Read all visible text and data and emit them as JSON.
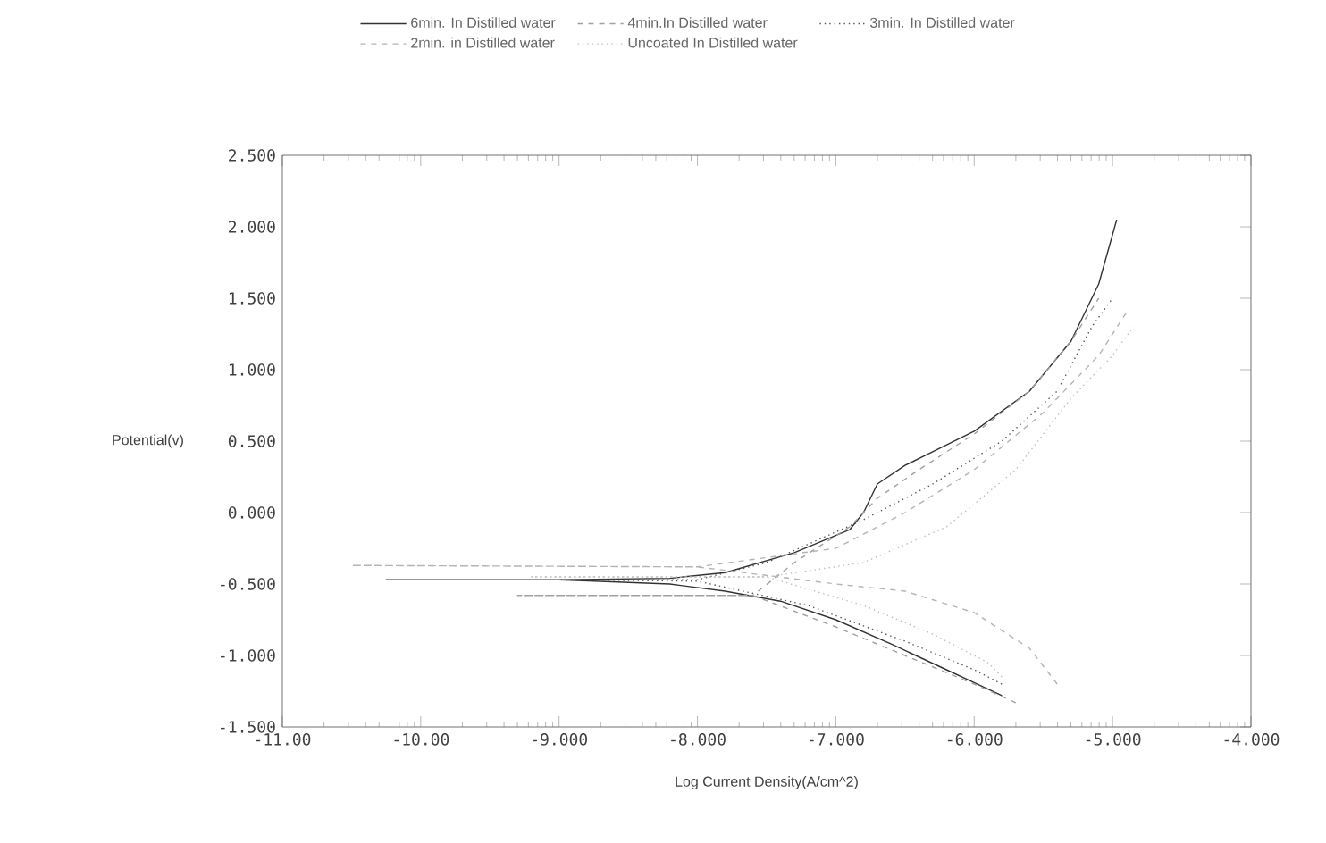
{
  "chart_data": {
    "type": "line",
    "xlabel": "Log Current Density(A/cm^2)",
    "ylabel": "Potential(v)",
    "xlim": [
      -11,
      -4
    ],
    "ylim": [
      -1.5,
      2.5
    ],
    "xticks": [
      {
        "value": -11,
        "label": "-11.00"
      },
      {
        "value": -10,
        "label": "-10.00"
      },
      {
        "value": -9,
        "label": "-9.000"
      },
      {
        "value": -8,
        "label": "-8.000"
      },
      {
        "value": -7,
        "label": "-7.000"
      },
      {
        "value": -6,
        "label": "-6.000"
      },
      {
        "value": -5,
        "label": "-5.000"
      },
      {
        "value": -4,
        "label": "-4.000"
      }
    ],
    "yticks": [
      {
        "value": -1.5,
        "label": "-1.500"
      },
      {
        "value": -1,
        "label": "-1.000"
      },
      {
        "value": -0.5,
        "label": "-0.500"
      },
      {
        "value": 0,
        "label": "0.000"
      },
      {
        "value": 0.5,
        "label": "0.500"
      },
      {
        "value": 1,
        "label": "1.000"
      },
      {
        "value": 1.5,
        "label": "1.500"
      },
      {
        "value": 2,
        "label": "2.000"
      },
      {
        "value": 2.5,
        "label": "2.500"
      }
    ],
    "grid": false,
    "legend": "top",
    "marker": "none",
    "series": [
      {
        "name": "6min. In Distilled water",
        "color": "#333333",
        "line_style": "solid",
        "x": [
          -5.8,
          -6.2,
          -6.6,
          -7.0,
          -7.4,
          -7.8,
          -8.2,
          -9.0,
          -10.25,
          -9.0,
          -8.2,
          -7.8,
          -7.3,
          -6.9,
          -6.8,
          -6.7,
          -6.5,
          -6.0,
          -5.6,
          -5.3,
          -5.1,
          -4.97
        ],
        "values": [
          -1.28,
          -1.1,
          -0.92,
          -0.75,
          -0.62,
          -0.55,
          -0.5,
          -0.47,
          -0.47,
          -0.47,
          -0.46,
          -0.42,
          -0.28,
          -0.12,
          0.0,
          0.2,
          0.33,
          0.57,
          0.85,
          1.2,
          1.6,
          2.05
        ]
      },
      {
        "name": "4min.In Distilled water",
        "color": "#a0a0a0",
        "line_style": "dashed",
        "x": [
          -5.7,
          -6.0,
          -6.5,
          -7.0,
          -7.6,
          -9.3,
          -7.6,
          -7.3,
          -6.9,
          -6.7,
          -6.4,
          -6.0,
          -5.6,
          -5.3,
          -5.1
        ],
        "values": [
          -1.33,
          -1.2,
          -1.0,
          -0.8,
          -0.58,
          -0.58,
          -0.58,
          -0.35,
          -0.1,
          0.1,
          0.3,
          0.55,
          0.85,
          1.2,
          1.5
        ]
      },
      {
        "name": "3min. In Distilled water",
        "color": "#555555",
        "line_style": "dotted",
        "x": [
          -5.8,
          -6.0,
          -6.5,
          -7.2,
          -8.0,
          -9.0,
          -8.0,
          -7.5,
          -6.8,
          -6.3,
          -5.8,
          -5.4,
          -5.15,
          -5.0
        ],
        "values": [
          -1.2,
          -1.1,
          -0.9,
          -0.65,
          -0.48,
          -0.47,
          -0.47,
          -0.35,
          -0.05,
          0.2,
          0.5,
          0.85,
          1.3,
          1.5
        ]
      },
      {
        "name": "2min. in Distilled water",
        "color": "#b4b4b4",
        "line_style": "dashed",
        "x": [
          -5.4,
          -5.6,
          -6.0,
          -6.5,
          -7.0,
          -8.0,
          -10.5,
          -8.0,
          -7.0,
          -6.5,
          -6.0,
          -5.5,
          -5.1,
          -4.9
        ],
        "values": [
          -1.2,
          -0.95,
          -0.7,
          -0.55,
          -0.5,
          -0.38,
          -0.37,
          -0.38,
          -0.25,
          0.0,
          0.3,
          0.7,
          1.1,
          1.4
        ]
      },
      {
        "name": "Uncoated In Distilled water",
        "color": "#bcbcbc",
        "line_style": "dotted",
        "x": [
          -5.8,
          -5.9,
          -6.3,
          -6.8,
          -7.5,
          -9.2,
          -7.5,
          -6.8,
          -6.2,
          -5.7,
          -5.3,
          -5.0,
          -4.85
        ],
        "values": [
          -1.15,
          -1.05,
          -0.85,
          -0.65,
          -0.45,
          -0.45,
          -0.45,
          -0.35,
          -0.1,
          0.3,
          0.8,
          1.1,
          1.3
        ]
      }
    ]
  }
}
